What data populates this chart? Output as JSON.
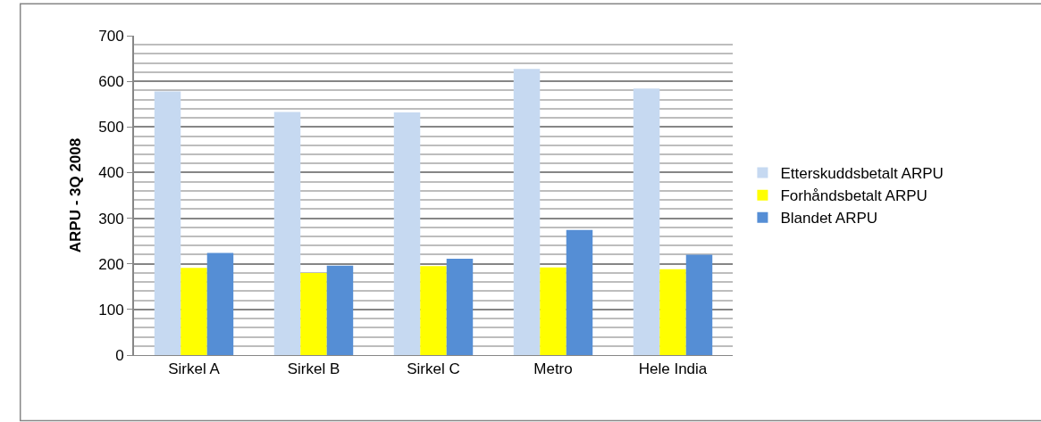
{
  "chart_data": {
    "type": "bar",
    "ylabel": "ARPU - 3Q 2008",
    "categories": [
      "Sirkel A",
      "Sirkel B",
      "Sirkel C",
      "Metro",
      "Hele India"
    ],
    "series": [
      {
        "name": "Etterskuddsbetalt ARPU",
        "color": "#c6d9f1",
        "values": [
          578,
          533,
          532,
          627,
          584
        ]
      },
      {
        "name": "Forhåndsbetalt ARPU",
        "color": "#ffff00",
        "values": [
          191,
          180,
          195,
          192,
          188
        ]
      },
      {
        "name": "Blandet ARPU",
        "color": "#558ed5",
        "values": [
          224,
          196,
          211,
          274,
          220
        ]
      }
    ],
    "ylim": [
      0,
      700
    ],
    "yticks": [
      0,
      100,
      200,
      300,
      400,
      500,
      600,
      700
    ],
    "grid": "y",
    "legend": "right"
  }
}
